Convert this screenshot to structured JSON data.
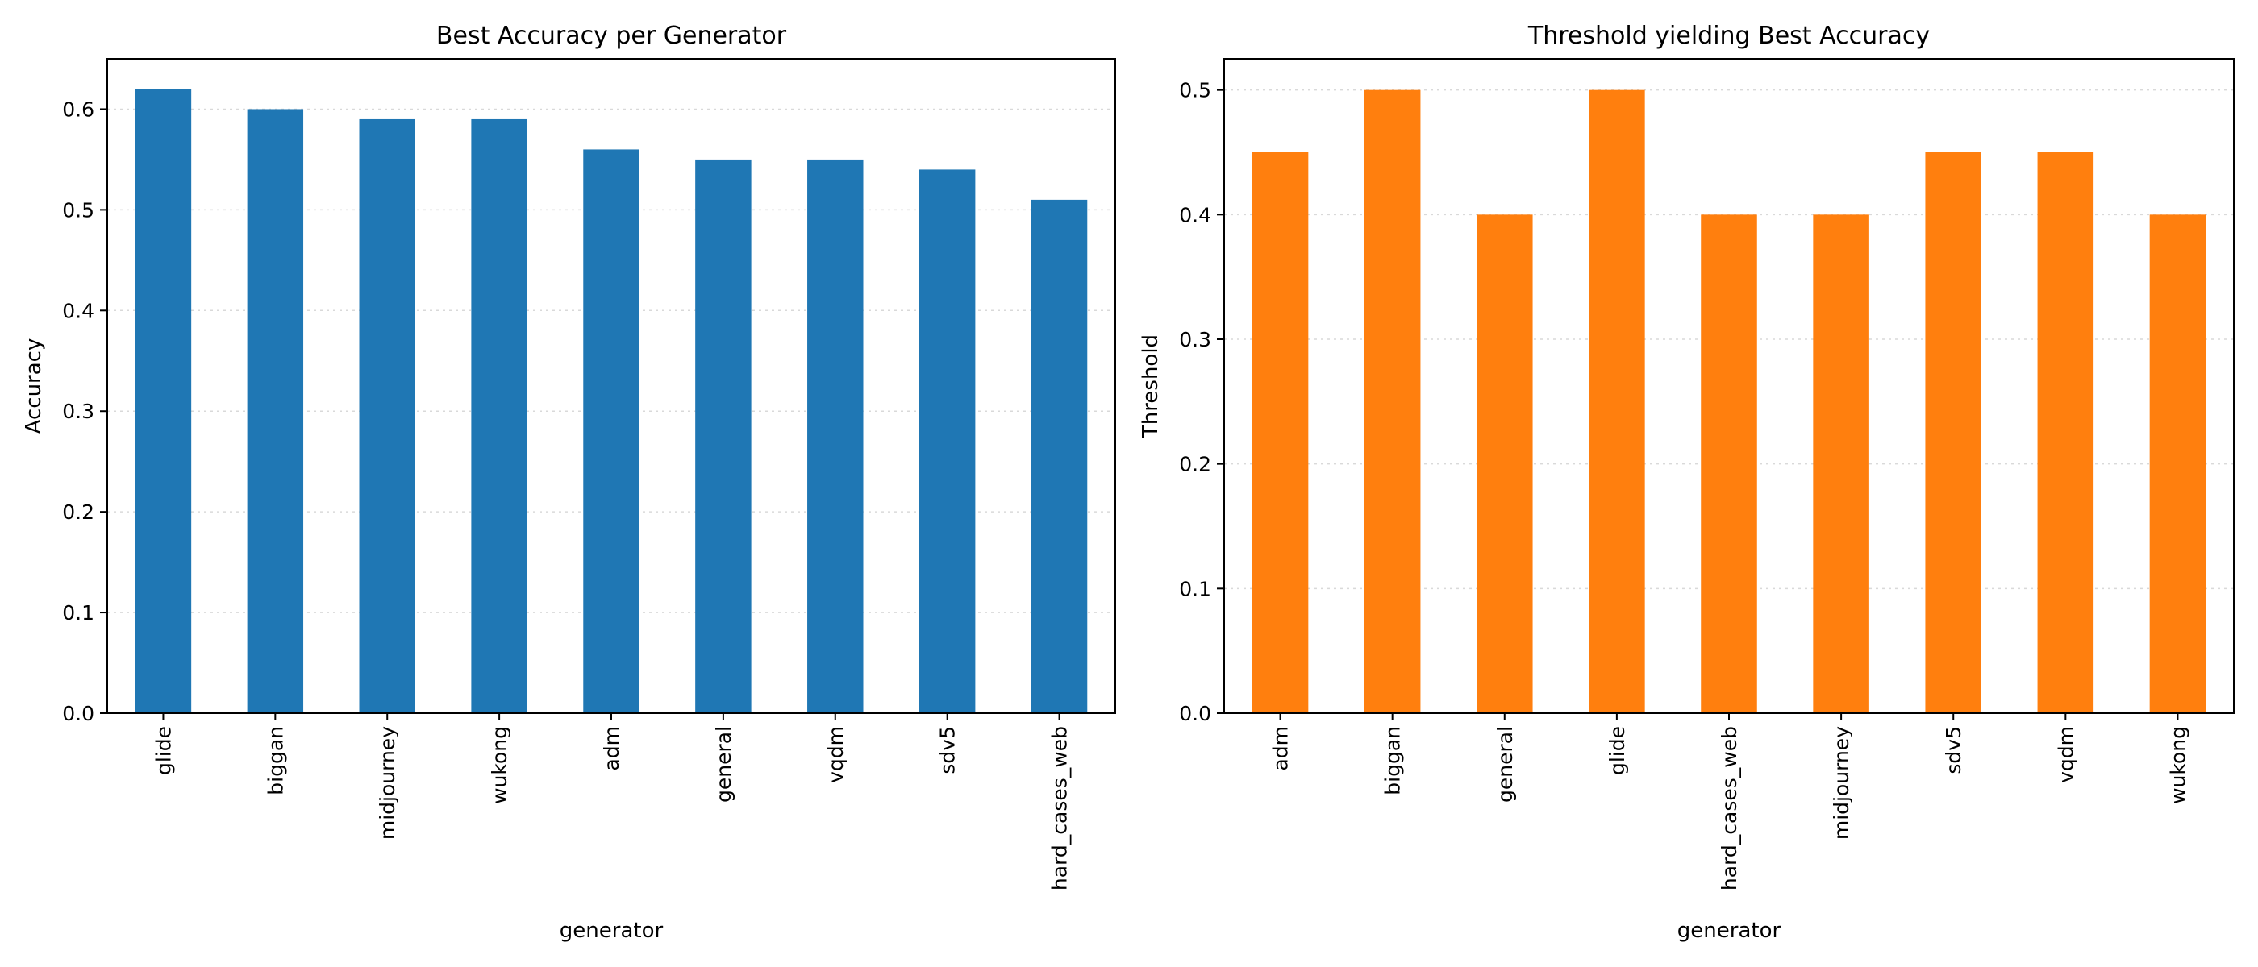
{
  "chart_data": [
    {
      "type": "bar",
      "title": "Best Accuracy per Generator",
      "xlabel": "generator",
      "ylabel": "Accuracy",
      "categories": [
        "glide",
        "biggan",
        "midjourney",
        "wukong",
        "adm",
        "general",
        "vqdm",
        "sdv5",
        "hard_cases_web"
      ],
      "values": [
        0.62,
        0.6,
        0.59,
        0.59,
        0.56,
        0.55,
        0.55,
        0.54,
        0.51
      ],
      "ylim": [
        0,
        0.65
      ],
      "yticks": [
        "0.0",
        "0.1",
        "0.2",
        "0.3",
        "0.4",
        "0.5",
        "0.6"
      ],
      "color": "#1f77b4",
      "grid": "y-dotted",
      "legend": "none"
    },
    {
      "type": "bar",
      "title": "Threshold yielding Best Accuracy",
      "xlabel": "generator",
      "ylabel": "Threshold",
      "categories": [
        "adm",
        "biggan",
        "general",
        "glide",
        "hard_cases_web",
        "midjourney",
        "sdv5",
        "vqdm",
        "wukong"
      ],
      "values": [
        0.45,
        0.5,
        0.4,
        0.5,
        0.4,
        0.4,
        0.45,
        0.45,
        0.4
      ],
      "ylim": [
        0,
        0.525
      ],
      "yticks": [
        "0.0",
        "0.1",
        "0.2",
        "0.3",
        "0.4",
        "0.5"
      ],
      "color": "#ff7f0e",
      "grid": "y-dotted",
      "legend": "none"
    }
  ]
}
